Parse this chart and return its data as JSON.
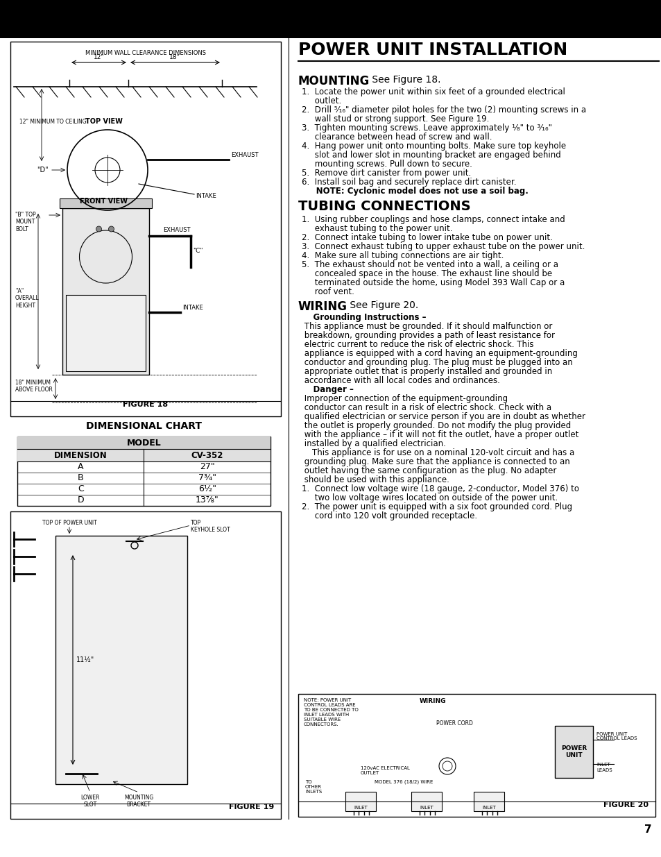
{
  "page_bg": "#ffffff",
  "header_bg": "#000000",
  "title": "POWER UNIT INSTALLATION",
  "mounting_title": "MOUNTING",
  "mounting_title_suffix": " See Figure 18.",
  "tubing_title": "TUBING CONNECTIONS",
  "wiring_title": "WIRING",
  "wiring_title_suffix": " See Figure 20.",
  "figure18_label": "FIGURE 18",
  "figure19_label": "FIGURE 19",
  "figure20_label": "FIGURE 20",
  "dim_chart_title": "DIMENSIONAL CHART",
  "dim_model_header": "MODEL",
  "dim_col1": "DIMENSION",
  "dim_col2": "CV-352",
  "dim_rows": [
    [
      "A",
      "27\""
    ],
    [
      "B",
      "7¾\""
    ],
    [
      "C",
      "6½\""
    ],
    [
      "D",
      "13⅞\""
    ]
  ],
  "page_number": "7",
  "mounting_lines": [
    [
      "1.  Locate the power unit within six feet of a grounded electrical",
      false
    ],
    [
      "     outlet.",
      false
    ],
    [
      "2.  Drill ⁵⁄₁₆\" diameter pilot holes for the two (2) mounting screws in a",
      false
    ],
    [
      "     wall stud or strong support. See Figure 19.",
      false
    ],
    [
      "3.  Tighten mounting screws. Leave approximately ¹⁄₈\" to ³⁄₁₆\"",
      false
    ],
    [
      "     clearance between head of screw and wall.",
      false
    ],
    [
      "4.  Hang power unit onto mounting bolts. Make sure top keyhole",
      false
    ],
    [
      "     slot and lower slot in mounting bracket are engaged behind",
      false
    ],
    [
      "     mounting screws. Pull down to secure.",
      false
    ],
    [
      "5.  Remove dirt canister from power unit.",
      false
    ],
    [
      "6.  Install soil bag and securely replace dirt canister.",
      false
    ],
    [
      "     NOTE: Cyclonic model does not use a soil bag.",
      true
    ]
  ],
  "tubing_lines": [
    "1.  Using rubber couplings and hose clamps, connect intake and",
    "     exhaust tubing to the power unit.",
    "2.  Connect intake tubing to lower intake tube on power unit.",
    "3.  Connect exhaust tubing to upper exhaust tube on the power unit.",
    "4.  Make sure all tubing connections are air tight.",
    "5.  The exhaust should not be vented into a wall, a ceiling or a",
    "     concealed space in the house. The exhaust line should be",
    "     terminated outside the home, using Model 393 Wall Cap or a",
    "     roof vent."
  ],
  "wiring_lines": [
    [
      "    Grounding Instructions –",
      true
    ],
    [
      " This appliance must be grounded. If it should malfunction or",
      false
    ],
    [
      " breakdown, grounding provides a path of least resistance for",
      false
    ],
    [
      " electric current to reduce the risk of electric shock. This",
      false
    ],
    [
      " appliance is equipped with a cord having an equipment-grounding",
      false
    ],
    [
      " conductor and grounding plug. The plug must be plugged into an",
      false
    ],
    [
      " appropriate outlet that is properly installed and grounded in",
      false
    ],
    [
      " accordance with all local codes and ordinances.",
      false
    ],
    [
      "    Danger –",
      true
    ],
    [
      " Improper connection of the equipment-grounding",
      false
    ],
    [
      " conductor can result in a risk of electric shock. Check with a",
      false
    ],
    [
      " qualified electrician or service person if you are in doubt as whether",
      false
    ],
    [
      " the outlet is properly grounded. Do not modify the plug provided",
      false
    ],
    [
      " with the appliance – if it will not fit the outlet, have a proper outlet",
      false
    ],
    [
      " installed by a qualified electrician.",
      false
    ],
    [
      "    This appliance is for use on a nominal 120-volt circuit and has a",
      false
    ],
    [
      " grounding plug. Make sure that the appliance is connected to an",
      false
    ],
    [
      " outlet having the same configuration as the plug. No adapter",
      false
    ],
    [
      " should be used with this appliance.",
      false
    ],
    [
      "1.  Connect low voltage wire (18 gauge, 2-conductor, Model 376) to",
      false
    ],
    [
      "     two low voltage wires located on outside of the power unit.",
      false
    ],
    [
      "2.  The power unit is equipped with a six foot grounded cord. Plug",
      false
    ],
    [
      "     cord into 120 volt grounded receptacle.",
      false
    ]
  ]
}
